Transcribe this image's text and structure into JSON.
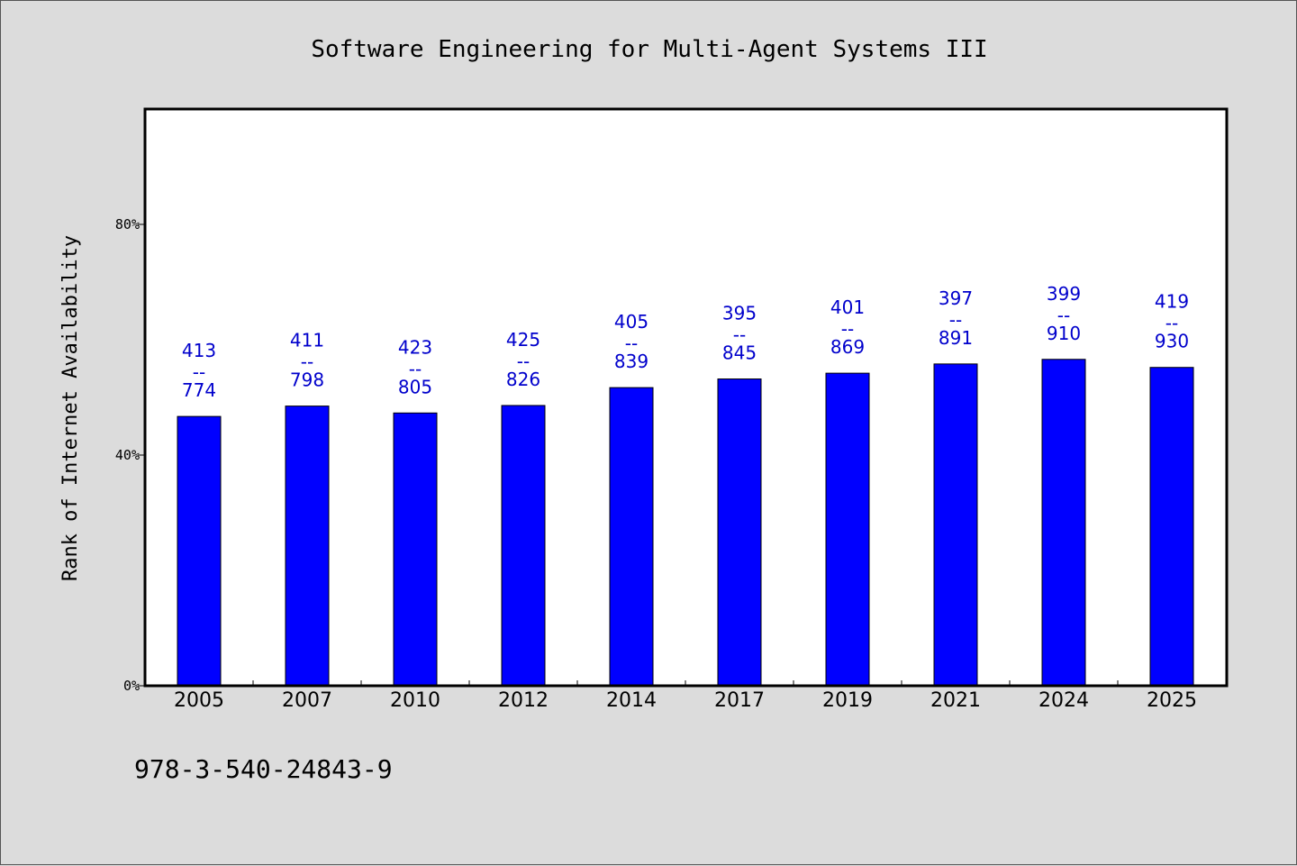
{
  "chart_data": {
    "type": "bar",
    "title": "Software Engineering for Multi-Agent Systems III",
    "xlabel": "",
    "ylabel": "Rank of Internet Availability",
    "ylim": [
      0,
      100
    ],
    "yticks": [
      {
        "value": 0,
        "label": "0%"
      },
      {
        "value": 40,
        "label": "40%"
      },
      {
        "value": 80,
        "label": "80%"
      }
    ],
    "categories": [
      "2005",
      "2007",
      "2010",
      "2012",
      "2014",
      "2017",
      "2019",
      "2021",
      "2024",
      "2025"
    ],
    "values": [
      46.7,
      48.5,
      47.3,
      48.6,
      51.7,
      53.2,
      54.2,
      55.8,
      56.6,
      55.2
    ],
    "data_labels": [
      {
        "top": "413",
        "sep": "--",
        "bottom": "774"
      },
      {
        "top": "411",
        "sep": "--",
        "bottom": "798"
      },
      {
        "top": "423",
        "sep": "--",
        "bottom": "805"
      },
      {
        "top": "425",
        "sep": "--",
        "bottom": "826"
      },
      {
        "top": "405",
        "sep": "--",
        "bottom": "839"
      },
      {
        "top": "395",
        "sep": "--",
        "bottom": "845"
      },
      {
        "top": "401",
        "sep": "--",
        "bottom": "869"
      },
      {
        "top": "397",
        "sep": "--",
        "bottom": "891"
      },
      {
        "top": "399",
        "sep": "--",
        "bottom": "910"
      },
      {
        "top": "419",
        "sep": "--",
        "bottom": "930"
      }
    ],
    "bar_color": "#0000ff",
    "label_color": "#0000cc",
    "grid": false,
    "legend": "none"
  },
  "footer": {
    "isbn": "978-3-540-24843-9"
  },
  "colors": {
    "background": "#dcdcdc",
    "plot_background": "#ffffff"
  }
}
